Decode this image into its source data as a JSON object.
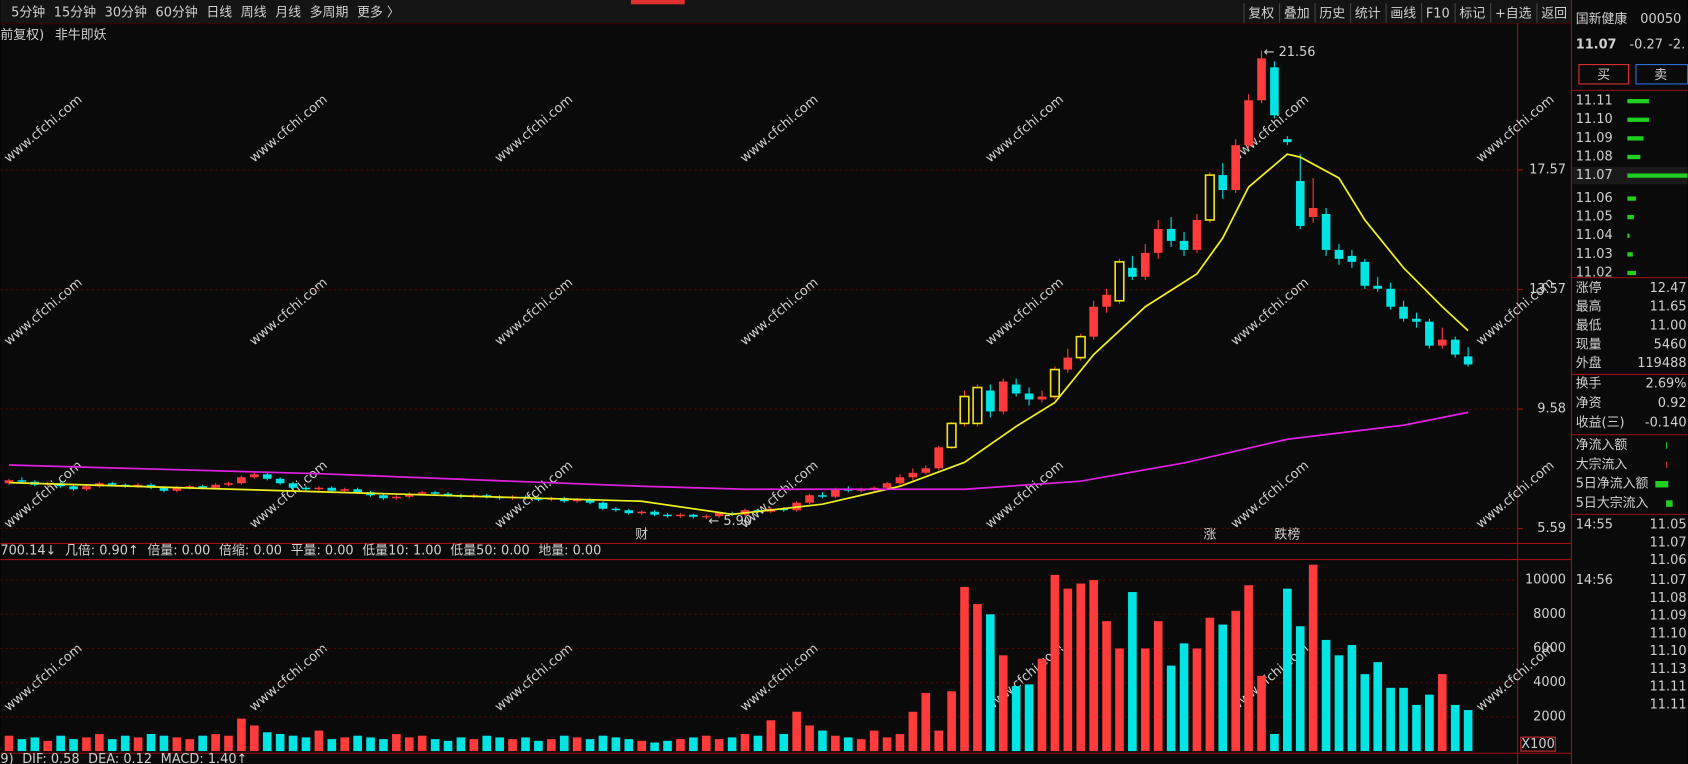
{
  "toolbar": {
    "left": [
      "5分钟",
      "15分钟",
      "30分钟",
      "60分钟",
      "日线",
      "周线",
      "月线",
      "多周期",
      "更多 〉"
    ],
    "right": [
      "复权",
      "叠加",
      "历史",
      "统计",
      "画线",
      "F10",
      "标记",
      "+自选",
      "返回"
    ]
  },
  "subtitle": [
    "前复权)",
    "非牛即妖"
  ],
  "watermark": "www.cfchi.com",
  "chart_data": {
    "type": "candlestick",
    "ohlc": [
      [
        7.1,
        7.2,
        7.25,
        7.05
      ],
      [
        7.2,
        7.15,
        7.3,
        7.1
      ],
      [
        7.15,
        7.05,
        7.2,
        7.0
      ],
      [
        7.05,
        7.1,
        7.15,
        7.0
      ],
      [
        7.1,
        7.0,
        7.15,
        6.95
      ],
      [
        7.0,
        6.9,
        7.05,
        6.85
      ],
      [
        6.9,
        7.0,
        7.05,
        6.85
      ],
      [
        7.0,
        7.1,
        7.15,
        6.95
      ],
      [
        7.1,
        7.05,
        7.15,
        7.0
      ],
      [
        7.05,
        7.0,
        7.1,
        6.95
      ],
      [
        7.0,
        7.05,
        7.1,
        6.95
      ],
      [
        7.05,
        6.95,
        7.1,
        6.9
      ],
      [
        6.95,
        6.85,
        7.0,
        6.8
      ],
      [
        6.85,
        6.95,
        7.0,
        6.8
      ],
      [
        6.95,
        7.0,
        7.05,
        6.9
      ],
      [
        7.0,
        6.95,
        7.05,
        6.9
      ],
      [
        6.95,
        7.05,
        7.1,
        6.9
      ],
      [
        7.05,
        7.1,
        7.15,
        7.0
      ],
      [
        7.1,
        7.3,
        7.35,
        7.05
      ],
      [
        7.3,
        7.4,
        7.5,
        7.25
      ],
      [
        7.4,
        7.25,
        7.45,
        7.2
      ],
      [
        7.25,
        7.1,
        7.3,
        7.05
      ],
      [
        7.1,
        6.95,
        7.15,
        6.9
      ],
      [
        6.95,
        6.9,
        7.0,
        6.85
      ],
      [
        6.9,
        6.95,
        7.0,
        6.85
      ],
      [
        6.95,
        6.85,
        7.0,
        6.8
      ],
      [
        6.85,
        6.9,
        6.95,
        6.8
      ],
      [
        6.9,
        6.8,
        6.95,
        6.75
      ],
      [
        6.8,
        6.7,
        6.85,
        6.65
      ],
      [
        6.7,
        6.6,
        6.75,
        6.55
      ],
      [
        6.6,
        6.65,
        6.7,
        6.55
      ],
      [
        6.65,
        6.75,
        6.8,
        6.6
      ],
      [
        6.75,
        6.8,
        6.85,
        6.7
      ],
      [
        6.8,
        6.75,
        6.85,
        6.7
      ],
      [
        6.75,
        6.7,
        6.8,
        6.65
      ],
      [
        6.7,
        6.65,
        6.75,
        6.6
      ],
      [
        6.65,
        6.7,
        6.75,
        6.6
      ],
      [
        6.7,
        6.65,
        6.75,
        6.6
      ],
      [
        6.65,
        6.6,
        6.7,
        6.55
      ],
      [
        6.6,
        6.65,
        6.7,
        6.55
      ],
      [
        6.65,
        6.6,
        6.7,
        6.55
      ],
      [
        6.6,
        6.55,
        6.65,
        6.5
      ],
      [
        6.55,
        6.6,
        6.65,
        6.5
      ],
      [
        6.6,
        6.5,
        6.65,
        6.45
      ],
      [
        6.5,
        6.55,
        6.6,
        6.45
      ],
      [
        6.55,
        6.45,
        6.6,
        6.4
      ],
      [
        6.45,
        6.25,
        6.5,
        6.2
      ],
      [
        6.25,
        6.2,
        6.3,
        6.15
      ],
      [
        6.2,
        6.1,
        6.25,
        6.05
      ],
      [
        6.1,
        6.15,
        6.2,
        6.05
      ],
      [
        6.15,
        6.05,
        6.2,
        6.0
      ],
      [
        6.05,
        6.0,
        6.1,
        5.95
      ],
      [
        6.0,
        6.05,
        6.1,
        5.95
      ],
      [
        6.05,
        5.98,
        6.08,
        5.92
      ],
      [
        5.98,
        6.0,
        6.05,
        5.9
      ],
      [
        6.0,
        6.1,
        6.15,
        5.95
      ],
      [
        6.1,
        6.05,
        6.15,
        6.0
      ],
      [
        6.05,
        6.2,
        6.25,
        6.0
      ],
      [
        6.2,
        6.15,
        6.25,
        6.1
      ],
      [
        6.15,
        6.25,
        6.3,
        6.1
      ],
      [
        6.25,
        6.2,
        6.3,
        6.15
      ],
      [
        6.2,
        6.45,
        6.5,
        6.15
      ],
      [
        6.45,
        6.7,
        6.75,
        6.4
      ],
      [
        6.7,
        6.65,
        6.8,
        6.6
      ],
      [
        6.65,
        6.9,
        6.95,
        6.6
      ],
      [
        6.9,
        6.85,
        7.0,
        6.8
      ],
      [
        6.85,
        6.9,
        6.95,
        6.8
      ],
      [
        6.9,
        6.95,
        7.0,
        6.85
      ],
      [
        6.95,
        7.1,
        7.15,
        6.9
      ],
      [
        7.1,
        7.3,
        7.4,
        7.05
      ],
      [
        7.3,
        7.45,
        7.6,
        7.2
      ],
      [
        7.45,
        7.6,
        7.7,
        7.4
      ],
      [
        7.6,
        8.3,
        8.35,
        7.55
      ],
      [
        8.3,
        9.1,
        9.15,
        8.25
      ],
      [
        9.1,
        10.0,
        10.2,
        9.0
      ],
      [
        9.1,
        10.3,
        10.4,
        9.0
      ],
      [
        10.2,
        9.5,
        10.4,
        9.3
      ],
      [
        9.5,
        10.5,
        10.6,
        9.4
      ],
      [
        10.4,
        10.1,
        10.6,
        10.0
      ],
      [
        10.1,
        9.9,
        10.3,
        9.7
      ],
      [
        9.9,
        10.0,
        10.2,
        9.8
      ],
      [
        10.0,
        10.9,
        11.0,
        9.9
      ],
      [
        10.9,
        11.3,
        11.6,
        10.8
      ],
      [
        11.3,
        12.0,
        12.1,
        11.2
      ],
      [
        12.0,
        13.0,
        13.2,
        11.9
      ],
      [
        13.0,
        13.4,
        13.6,
        12.8
      ],
      [
        13.2,
        14.5,
        14.6,
        13.1
      ],
      [
        14.3,
        14.0,
        14.7,
        13.9
      ],
      [
        14.0,
        14.8,
        15.1,
        13.9
      ],
      [
        14.8,
        15.6,
        15.9,
        14.6
      ],
      [
        15.6,
        15.2,
        16.0,
        15.0
      ],
      [
        15.2,
        14.9,
        15.5,
        14.7
      ],
      [
        14.9,
        15.9,
        16.1,
        14.8
      ],
      [
        15.9,
        17.4,
        17.5,
        15.8
      ],
      [
        17.4,
        16.9,
        17.8,
        16.6
      ],
      [
        16.9,
        18.4,
        18.6,
        16.8
      ],
      [
        18.4,
        19.9,
        20.1,
        18.3
      ],
      [
        19.9,
        21.3,
        21.56,
        19.8
      ],
      [
        21.0,
        19.4,
        21.2,
        19.3
      ],
      [
        18.6,
        18.5,
        18.7,
        18.4
      ],
      [
        17.2,
        15.7,
        18.1,
        15.6
      ],
      [
        16.0,
        16.3,
        17.3,
        15.8
      ],
      [
        16.1,
        14.9,
        16.3,
        14.7
      ],
      [
        14.9,
        14.6,
        15.1,
        14.4
      ],
      [
        14.7,
        14.5,
        14.9,
        14.3
      ],
      [
        14.5,
        13.7,
        14.6,
        13.6
      ],
      [
        13.7,
        13.6,
        14.0,
        13.5
      ],
      [
        13.6,
        13.0,
        13.8,
        12.9
      ],
      [
        13.0,
        12.6,
        13.2,
        12.5
      ],
      [
        12.6,
        12.5,
        12.8,
        12.3
      ],
      [
        12.5,
        11.7,
        12.6,
        11.6
      ],
      [
        11.7,
        11.9,
        12.3,
        11.6
      ],
      [
        11.9,
        11.4,
        12.0,
        11.3
      ],
      [
        11.34,
        11.07,
        11.65,
        11.0
      ]
    ],
    "boxed": [
      73,
      74,
      75,
      81,
      83,
      86,
      93
    ],
    "up_color": "#ff3b3b",
    "down_color": "#00e4e4",
    "box_color": "#f0e020",
    "ylim": [
      5.09,
      22.46
    ],
    "yticks": [
      5.59,
      9.58,
      13.57,
      17.57
    ],
    "grid": true,
    "lines": [
      {
        "color": "#f0f020",
        "x": [
          0,
          49,
          56,
          63,
          69,
          74,
          78,
          81,
          84,
          88,
          92,
          94,
          96,
          99,
          100,
          103,
          105,
          108,
          111,
          113
        ],
        "values": [
          7.12,
          6.5,
          6.06,
          6.4,
          7.0,
          7.8,
          9.0,
          9.8,
          11.4,
          13.0,
          14.1,
          15.3,
          17.0,
          18.1,
          18.0,
          17.3,
          15.9,
          14.3,
          13.0,
          12.2
        ]
      },
      {
        "color": "#e020e0",
        "x": [
          0,
          24,
          49,
          57,
          74,
          83,
          91,
          99,
          108,
          113
        ],
        "values": [
          7.71,
          7.42,
          7.0,
          6.9,
          6.9,
          7.17,
          7.78,
          8.57,
          9.04,
          9.47
        ]
      }
    ],
    "annotations": [
      {
        "x": 97,
        "value": 21.56,
        "label": "← 21.56"
      },
      {
        "x": 54,
        "value": 5.9,
        "label": "← 5.90"
      }
    ],
    "markers": [
      {
        "x": 49,
        "text": "财",
        "color": "#a0c8ff"
      },
      {
        "x": 93,
        "text": "涨",
        "color": "#ff5050"
      },
      {
        "x": 99,
        "text": "跌榜",
        "color": "#40ff40"
      }
    ],
    "volume": {
      "values": [
        900,
        700,
        800,
        600,
        900,
        700,
        800,
        1000,
        700,
        900,
        800,
        1000,
        900,
        800,
        700,
        900,
        1000,
        900,
        1900,
        1500,
        1100,
        1000,
        900,
        800,
        1200,
        700,
        800,
        900,
        800,
        700,
        1000,
        800,
        900,
        700,
        600,
        800,
        700,
        900,
        800,
        700,
        800,
        600,
        700,
        900,
        800,
        700,
        900,
        800,
        700,
        600,
        500,
        600,
        700,
        800,
        900,
        700,
        800,
        1000,
        900,
        1800,
        1000,
        2300,
        1500,
        1200,
        900,
        800,
        700,
        1200,
        800,
        1000,
        2300,
        3400,
        1200,
        3500,
        9600,
        8600,
        8000,
        5600,
        3800,
        3900,
        5400,
        10300,
        9500,
        9800,
        10000,
        7600,
        6000,
        9300,
        6000,
        7600,
        5000,
        6300,
        6000,
        7800,
        7400,
        8200,
        9700,
        4400,
        1000,
        9500,
        7300,
        10900,
        6500,
        5600,
        6200,
        4500,
        5200,
        3700,
        3700,
        2700,
        3300,
        4500,
        2700,
        2400
      ],
      "ylim": [
        0,
        11200
      ],
      "yticks": [
        2000,
        4000,
        6000,
        8000,
        10000
      ],
      "unit": "X100"
    }
  },
  "indicator": [
    {
      "text": "700.14↓",
      "color": "#e0e0e0"
    },
    {
      "text": "几倍: 0.90↑",
      "color": "#f0e020"
    },
    {
      "text": "倍量: 0.00",
      "color": "#b040ff"
    },
    {
      "text": "倍缩: 0.00",
      "color": "#ff40ff"
    },
    {
      "text": "平量: 0.00",
      "color": "#40e0e0"
    },
    {
      "text": "低量10: 1.00",
      "color": "#20c020"
    },
    {
      "text": "低量50: 0.00",
      "color": "#4060ff"
    },
    {
      "text": "地量: 0.00",
      "color": "#a0a0a0"
    }
  ],
  "macd": [
    {
      "text": "9)",
      "color": "#e0e0e0"
    },
    {
      "text": "DIF: 0.58",
      "color": "#e0e0e0"
    },
    {
      "text": "DEA: 0.12",
      "color": "#f0e020"
    },
    {
      "text": "MACD: 1.40↑",
      "color": "#ff40ff"
    }
  ],
  "quote": {
    "name": "国新健康",
    "code": "00050",
    "price": "11.07",
    "change": "-0.27",
    "pct": "-2.",
    "buy": "买",
    "sell": "卖",
    "book": [
      {
        "price": "11.11",
        "size": 20
      },
      {
        "price": "11.10",
        "size": 20
      },
      {
        "price": "11.09",
        "size": 15
      },
      {
        "price": "11.08",
        "size": 12
      },
      {
        "price": "11.07",
        "size": 56
      },
      {
        "price": "11.06",
        "size": 8
      },
      {
        "price": "11.05",
        "size": 6
      },
      {
        "price": "11.04",
        "size": 2
      },
      {
        "price": "11.03",
        "size": 5
      },
      {
        "price": "11.02",
        "size": 8
      }
    ],
    "stats": [
      {
        "label": "涨停",
        "value": "12.47",
        "color": "#ff4040"
      },
      {
        "label": "最高",
        "value": "11.65",
        "color": "#ff4040"
      },
      {
        "label": "最低",
        "value": "11.00",
        "color": "#20e020"
      },
      {
        "label": "现量",
        "value": "5460",
        "color": "#e040e0"
      },
      {
        "label": "外盘",
        "value": "119488",
        "color": "#ff4040"
      }
    ],
    "stats2": [
      {
        "label": "换手",
        "value": "2.69%"
      },
      {
        "label": "净资",
        "value": "0.92"
      },
      {
        "label": "收益(三)",
        "value": "-0.140"
      }
    ],
    "flows": [
      "净流入额",
      "大宗流入",
      "5日净流入额",
      "5日大宗流入"
    ],
    "ticks": [
      {
        "time": "14:55",
        "prices": [
          "11.05",
          "11.07",
          "11.06"
        ]
      },
      {
        "time": "14:56",
        "prices": [
          "11.07",
          "11.08",
          "11.09",
          "11.10",
          "11.10",
          "11.13",
          "11.11",
          "11.11"
        ]
      }
    ]
  }
}
